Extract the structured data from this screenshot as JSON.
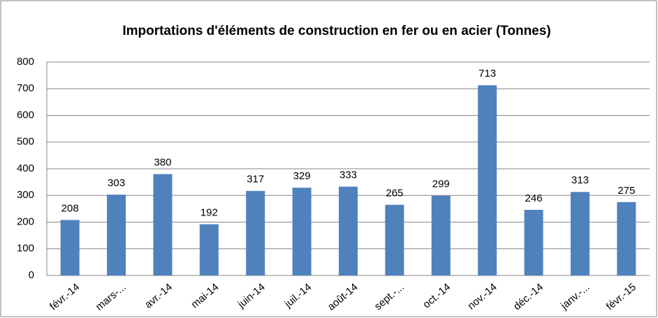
{
  "chart_data": {
    "type": "bar",
    "title": "Importations d'éléments de construction en fer ou en acier (Tonnes)",
    "categories": [
      "févr.-14",
      "mars-...",
      "avr.-14",
      "mai-14",
      "juin-14",
      "juil.-14",
      "août-14",
      "sept.-...",
      "oct.-14",
      "nov.-14",
      "déc.-14",
      "janv.-...",
      "févr.-15"
    ],
    "values": [
      208,
      303,
      380,
      192,
      317,
      329,
      333,
      265,
      299,
      713,
      246,
      313,
      275
    ],
    "color": "#4f81bd",
    "ylim": [
      0,
      800
    ],
    "yticks": [
      0,
      100,
      200,
      300,
      400,
      500,
      600,
      700,
      800
    ],
    "grid": true
  }
}
